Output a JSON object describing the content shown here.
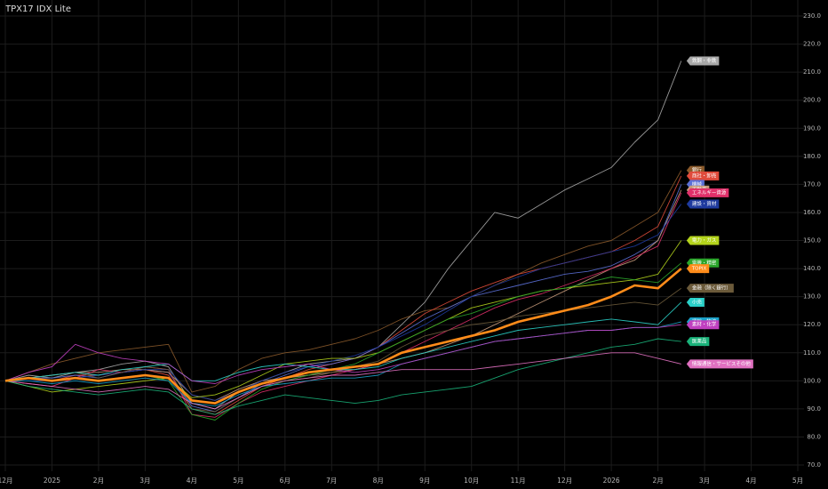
{
  "chart_data": {
    "type": "line",
    "title": "TPX17 IDX Lite",
    "categories": [
      "12月",
      null,
      "2025",
      null,
      "2月",
      null,
      "3月",
      null,
      "4月",
      null,
      "5月",
      null,
      "6月",
      null,
      "7月",
      null,
      "8月",
      null,
      "9月",
      null,
      "10月",
      null,
      "11月",
      null,
      "12月",
      null,
      "2026",
      null,
      "2月",
      null,
      "3月",
      null,
      "4月",
      null,
      "5月"
    ],
    "ylim": [
      70,
      230
    ],
    "yticks": [
      {
        "value": 70,
        "label": "70.0"
      },
      {
        "value": 80,
        "label": "80.0"
      },
      {
        "value": 90,
        "label": "90.0"
      },
      {
        "value": 100,
        "label": "100.0"
      },
      {
        "value": 110,
        "label": "110.0"
      },
      {
        "value": 120,
        "label": "120.0"
      },
      {
        "value": 130,
        "label": "130.0"
      },
      {
        "value": 140,
        "label": "140.0"
      },
      {
        "value": 150,
        "label": "150.0"
      },
      {
        "value": 160,
        "label": "160.0"
      },
      {
        "value": 170,
        "label": "170.0"
      },
      {
        "value": 180,
        "label": "180.0"
      },
      {
        "value": 190,
        "label": "190.0"
      },
      {
        "value": 200,
        "label": "200.0"
      },
      {
        "value": 210,
        "label": "210.0"
      },
      {
        "value": 220,
        "label": "220.0"
      },
      {
        "value": 230,
        "label": "230.0"
      }
    ],
    "grid": true,
    "series": [
      {
        "name": "鉄鋼・非鉄",
        "color": "#a8a8a8",
        "values": [
          100,
          102,
          101,
          103,
          104,
          106,
          107,
          105,
          92,
          90,
          96,
          100,
          103,
          106,
          107,
          108,
          112,
          120,
          128,
          140,
          150,
          160,
          158,
          163,
          168,
          172,
          176,
          185,
          193,
          214,
          null,
          null,
          null,
          null,
          null
        ]
      },
      {
        "name": "銀行",
        "color": "#8b5a2b",
        "values": [
          100,
          103,
          106,
          108,
          110,
          111,
          112,
          113,
          96,
          98,
          104,
          108,
          110,
          111,
          113,
          115,
          118,
          122,
          125,
          126,
          130,
          134,
          138,
          142,
          145,
          148,
          150,
          155,
          160,
          175,
          null,
          null,
          null,
          null,
          null
        ]
      },
      {
        "name": "商社・卸売",
        "color": "#e04b3b",
        "values": [
          100,
          101,
          100,
          102,
          102,
          103,
          104,
          102,
          90,
          88,
          93,
          98,
          101,
          104,
          106,
          108,
          112,
          118,
          124,
          128,
          132,
          135,
          138,
          140,
          142,
          144,
          146,
          150,
          155,
          173,
          null,
          null,
          null,
          null,
          null
        ]
      },
      {
        "name": "機械",
        "color": "#5b6fd6",
        "values": [
          100,
          101,
          101,
          102,
          101,
          103,
          104,
          103,
          91,
          89,
          94,
          99,
          102,
          105,
          106,
          108,
          112,
          117,
          122,
          126,
          130,
          132,
          134,
          136,
          138,
          139,
          141,
          145,
          150,
          170,
          null,
          null,
          null,
          null,
          null
        ]
      },
      {
        "name": "不動産",
        "color": "#c79a7a",
        "values": [
          100,
          101,
          102,
          103,
          103,
          104,
          104,
          103,
          95,
          93,
          97,
          100,
          101,
          102,
          103,
          104,
          106,
          108,
          110,
          113,
          116,
          120,
          124,
          128,
          132,
          136,
          140,
          143,
          150,
          168,
          null,
          null,
          null,
          null,
          null
        ]
      },
      {
        "name": "エネルギー資源",
        "color": "#e0306a",
        "values": [
          100,
          99,
          98,
          101,
          104,
          103,
          105,
          104,
          88,
          87,
          92,
          96,
          98,
          100,
          102,
          104,
          106,
          110,
          114,
          118,
          122,
          126,
          129,
          131,
          134,
          137,
          140,
          144,
          148,
          167,
          null,
          null,
          null,
          null,
          null
        ]
      },
      {
        "name": "建設・資材",
        "color": "#1e3a9e",
        "values": [
          100,
          100,
          100,
          101,
          102,
          103,
          104,
          104,
          95,
          93,
          96,
          100,
          103,
          105,
          107,
          109,
          112,
          116,
          120,
          125,
          130,
          134,
          137,
          140,
          142,
          144,
          146,
          148,
          152,
          163,
          null,
          null,
          null,
          null,
          null
        ]
      },
      {
        "name": "電力・ガス",
        "color": "#b4d41c",
        "values": [
          100,
          98,
          96,
          97,
          98,
          99,
          100,
          101,
          94,
          95,
          98,
          102,
          106,
          107,
          108,
          108,
          110,
          114,
          118,
          122,
          126,
          128,
          130,
          132,
          133,
          134,
          135,
          136,
          138,
          150,
          null,
          null,
          null,
          null,
          null
        ]
      },
      {
        "name": "電機・精密",
        "color": "#2aa52a",
        "values": [
          100,
          101,
          100,
          101,
          100,
          101,
          102,
          100,
          88,
          86,
          92,
          97,
          100,
          102,
          104,
          106,
          110,
          114,
          118,
          122,
          124,
          127,
          130,
          132,
          133,
          135,
          137,
          136,
          135,
          142,
          null,
          null,
          null,
          null,
          null
        ]
      },
      {
        "name": "TOPIX",
        "color": "#ff8c1a",
        "emphasis": true,
        "values": [
          100,
          101,
          100,
          101,
          100,
          101,
          102,
          101,
          93,
          92,
          96,
          99,
          101,
          103,
          104,
          105,
          106,
          110,
          112,
          114,
          116,
          118,
          121,
          123,
          125,
          127,
          130,
          134,
          133,
          140,
          null,
          null,
          null,
          null,
          null
        ]
      },
      {
        "name": "金融（除く銀行）",
        "color": "#6b5a3a",
        "values": [
          100,
          101,
          102,
          103,
          101,
          103,
          105,
          104,
          90,
          89,
          94,
          98,
          100,
          101,
          103,
          105,
          107,
          112,
          116,
          118,
          120,
          121,
          123,
          124,
          125,
          126,
          127,
          128,
          127,
          133,
          null,
          null,
          null,
          null,
          null
        ]
      },
      {
        "name": "小売",
        "color": "#2ad0c8",
        "values": [
          100,
          101,
          102,
          103,
          102,
          104,
          105,
          106,
          100,
          100,
          103,
          105,
          106,
          105,
          104,
          104,
          105,
          108,
          110,
          112,
          114,
          116,
          118,
          119,
          120,
          121,
          122,
          121,
          120,
          128,
          null,
          null,
          null,
          null,
          null
        ]
      },
      {
        "name": "運輸・物流",
        "color": "#1aa0c8",
        "values": [
          100,
          100,
          99,
          100,
          99,
          100,
          101,
          100,
          92,
          91,
          95,
          98,
          99,
          100,
          101,
          101,
          102,
          106,
          108,
          110,
          112,
          114,
          115,
          116,
          117,
          118,
          118,
          119,
          119,
          121,
          null,
          null,
          null,
          null,
          null
        ]
      },
      {
        "name": "素材・化学",
        "color": "#c040c0",
        "values": [
          100,
          103,
          105,
          113,
          110,
          108,
          107,
          106,
          100,
          99,
          102,
          104,
          105,
          106,
          104,
          103,
          104,
          106,
          108,
          110,
          112,
          114,
          115,
          116,
          117,
          118,
          118,
          119,
          119,
          120,
          null,
          null,
          null,
          null,
          null
        ]
      },
      {
        "name": "医薬品",
        "color": "#1ab27a",
        "values": [
          100,
          98,
          97,
          96,
          95,
          96,
          97,
          96,
          90,
          88,
          91,
          93,
          95,
          94,
          93,
          92,
          93,
          95,
          96,
          97,
          98,
          101,
          104,
          106,
          108,
          110,
          112,
          113,
          115,
          114,
          null,
          null,
          null,
          null,
          null
        ]
      },
      {
        "name": "情報通信・サービスその他",
        "color": "#e070c0",
        "values": [
          100,
          99,
          98,
          97,
          96,
          97,
          98,
          97,
          92,
          90,
          94,
          98,
          100,
          101,
          102,
          102,
          103,
          104,
          104,
          104,
          104,
          105,
          106,
          107,
          108,
          109,
          110,
          110,
          108,
          106,
          null,
          null,
          null,
          null,
          null
        ]
      }
    ]
  }
}
